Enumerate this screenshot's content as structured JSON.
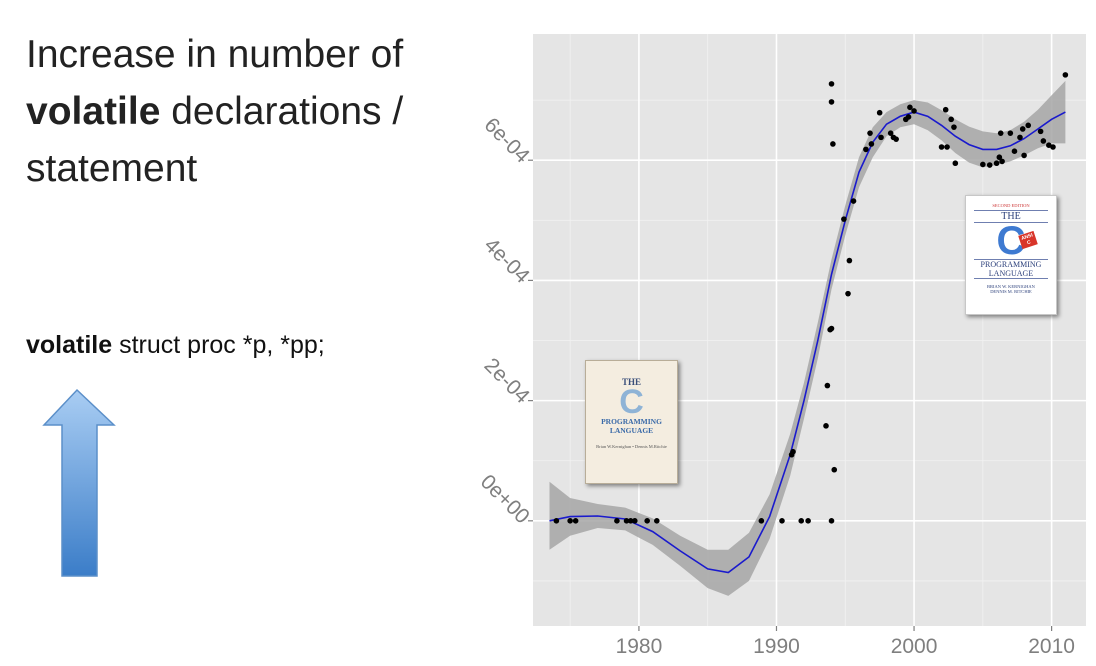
{
  "slide": {
    "title_part1": "Increase in number of",
    "title_bold": "volatile",
    "title_part2": " declarations /",
    "title_part3": "statement",
    "code_keyword": "volatile",
    "code_rest": " struct proc *p, *pp;"
  },
  "books": {
    "first_edition": {
      "the": "THE",
      "c": "C",
      "title": "PROGRAMMING LANGUAGE",
      "authors": "Brian W.Kernighan • Dennis M.Ritchie"
    },
    "second_edition": {
      "edition": "SECOND EDITION",
      "the": "THE",
      "c": "C",
      "ansi": "ANSI C",
      "title1": "PROGRAMMING",
      "title2": "LANGUAGE",
      "author1": "BRIAN W. KERNIGHAN",
      "author2": "DENNIS M. RITCHIE"
    }
  },
  "colors": {
    "panel": "#e5e5e5",
    "grid": "#ffffff",
    "points": "#000000",
    "smooth_line": "#1a1acd",
    "confidence_band": "#a9a9a9",
    "arrow_top": "#9fc6f1",
    "arrow_bottom": "#3b7dc8"
  },
  "chart_data": {
    "type": "scatter",
    "title": "",
    "xlabel": "",
    "ylabel": "",
    "xlim": [
      1972.3,
      2012.5
    ],
    "ylim": [
      -0.000175,
      0.00081
    ],
    "x_ticks": [
      1980,
      1990,
      2000,
      2010
    ],
    "x_tick_labels": [
      "1980",
      "1990",
      "2000",
      "2010"
    ],
    "y_ticks": [
      0,
      0.0002,
      0.0004,
      0.0006
    ],
    "y_tick_labels": [
      "0e+00",
      "2e-04",
      "4e-04",
      "6e-04"
    ],
    "grid": true,
    "points": [
      [
        1974.0,
        0
      ],
      [
        1975.0,
        0
      ],
      [
        1975.4,
        0
      ],
      [
        1978.4,
        0
      ],
      [
        1979.1,
        0
      ],
      [
        1979.4,
        0
      ],
      [
        1979.7,
        0
      ],
      [
        1980.6,
        0
      ],
      [
        1981.3,
        0
      ],
      [
        1988.9,
        0
      ],
      [
        1990.4,
        0
      ],
      [
        1991.8,
        0
      ],
      [
        1992.3,
        0
      ],
      [
        1994.0,
        0
      ],
      [
        1991.1,
        0.00011
      ],
      [
        1991.2,
        0.000115
      ],
      [
        1993.6,
        0.000158
      ],
      [
        1993.7,
        0.000225
      ],
      [
        1994.2,
        8.5e-05
      ],
      [
        1993.9,
        0.000318
      ],
      [
        1994.0,
        0.00032
      ],
      [
        1994.9,
        0.000502
      ],
      [
        1995.3,
        0.000433
      ],
      [
        1995.2,
        0.000378
      ],
      [
        1995.6,
        0.000532
      ],
      [
        1994.0,
        0.000727
      ],
      [
        1994.0,
        0.000697
      ],
      [
        1994.1,
        0.000627
      ],
      [
        1996.5,
        0.000618
      ],
      [
        1996.8,
        0.000645
      ],
      [
        1996.9,
        0.000627
      ],
      [
        1997.5,
        0.000679
      ],
      [
        1997.6,
        0.000638
      ],
      [
        1998.3,
        0.000645
      ],
      [
        1998.5,
        0.000638
      ],
      [
        1998.7,
        0.000635
      ],
      [
        1999.4,
        0.000668
      ],
      [
        1999.6,
        0.000672
      ],
      [
        1999.7,
        0.000688
      ],
      [
        2000.0,
        0.000682
      ],
      [
        2002.0,
        0.000622
      ],
      [
        2002.4,
        0.000622
      ],
      [
        2002.3,
        0.000684
      ],
      [
        2002.7,
        0.000668
      ],
      [
        2002.9,
        0.000655
      ],
      [
        2003.0,
        0.000595
      ],
      [
        2005.0,
        0.000593
      ],
      [
        2005.5,
        0.000592
      ],
      [
        2006.0,
        0.000595
      ],
      [
        2006.2,
        0.000605
      ],
      [
        2006.3,
        0.000645
      ],
      [
        2006.4,
        0.000598
      ],
      [
        2007.0,
        0.000645
      ],
      [
        2007.3,
        0.000615
      ],
      [
        2007.7,
        0.000638
      ],
      [
        2007.9,
        0.000652
      ],
      [
        2008.0,
        0.000608
      ],
      [
        2008.3,
        0.000658
      ],
      [
        2009.2,
        0.000648
      ],
      [
        2009.4,
        0.000632
      ],
      [
        2009.8,
        0.000625
      ],
      [
        2010.1,
        0.000622
      ],
      [
        2011.0,
        0.000742
      ]
    ],
    "smooth": {
      "x": [
        1973.5,
        1975,
        1977,
        1979,
        1981,
        1983,
        1985,
        1986.5,
        1988,
        1989.5,
        1991,
        1992,
        1993,
        1994,
        1995,
        1996,
        1997,
        1998,
        1999,
        2000,
        2001,
        2002,
        2003,
        2004,
        2005,
        2006,
        2007,
        2008,
        2009,
        2010,
        2011
      ],
      "y": [
        0,
        7e-06,
        8e-06,
        3e-06,
        -1.8e-05,
        -5e-05,
        -8e-05,
        -8.6e-05,
        -6e-05,
        7e-06,
        0.00011,
        0.0002,
        0.0003,
        0.00041,
        0.0005,
        0.00058,
        0.00063,
        0.00066,
        0.000673,
        0.00068,
        0.000673,
        0.000658,
        0.00064,
        0.000626,
        0.000618,
        0.000618,
        0.000624,
        0.000636,
        0.000652,
        0.000668,
        0.00068
      ],
      "lower": [
        -4.8e-05,
        -2.5e-05,
        -1.2e-05,
        -1.6e-05,
        -4e-05,
        -7.5e-05,
        -0.000112,
        -0.000125,
        -0.0001,
        -3e-05,
        7.5e-05,
        0.00017,
        0.00027,
        0.000385,
        0.000475,
        0.000555,
        0.000605,
        0.00064,
        0.000655,
        0.00066,
        0.00065,
        0.000633,
        0.000612,
        0.000596,
        0.000588,
        0.000592,
        0.000598,
        0.000608,
        0.00062,
        0.000628,
        0.000628
      ],
      "upper": [
        6.5e-05,
        3.8e-05,
        2.8e-05,
        2.2e-05,
        4e-06,
        -2.5e-05,
        -4.8e-05,
        -4.8e-05,
        -2e-05,
        4.4e-05,
        0.000145,
        0.00023,
        0.00033,
        0.000435,
        0.000525,
        0.000605,
        0.000655,
        0.00068,
        0.000693,
        0.0007,
        0.000696,
        0.000683,
        0.000668,
        0.000656,
        0.000648,
        0.000645,
        0.00065,
        0.000664,
        0.000684,
        0.000708,
        0.000732
      ]
    }
  }
}
